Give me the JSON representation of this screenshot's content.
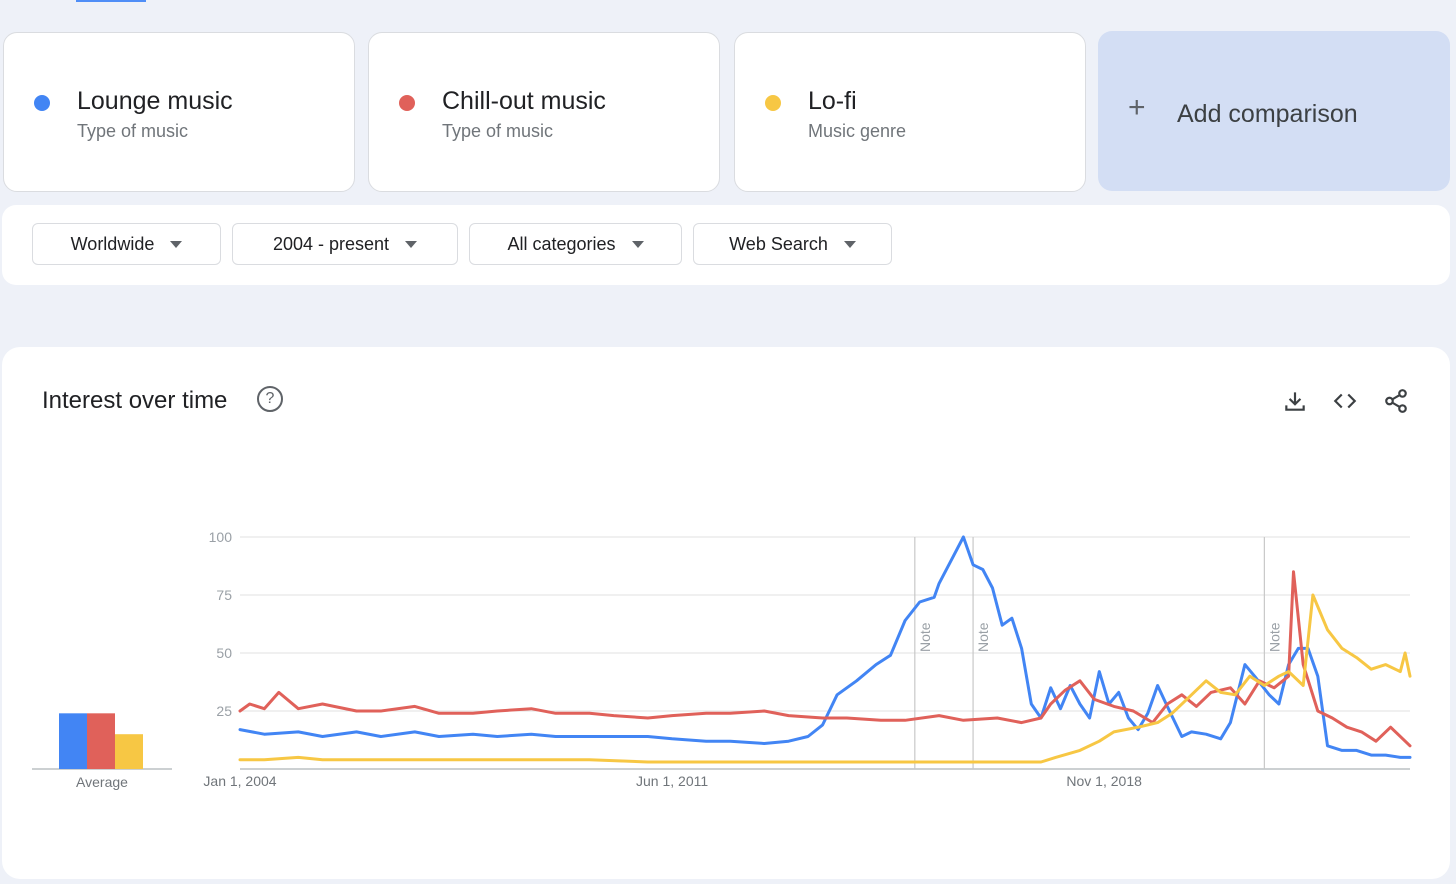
{
  "terms": [
    {
      "name": "Lounge music",
      "type": "Type of music",
      "color": "#4285f4"
    },
    {
      "name": "Chill-out music",
      "type": "Type of music",
      "color": "#e0615a"
    },
    {
      "name": "Lo-fi",
      "type": "Music genre",
      "color": "#f7c744"
    }
  ],
  "add_comparison": {
    "label": "Add comparison",
    "icon": "plus-icon"
  },
  "filters": {
    "region": "Worldwide",
    "time_range": "2004 - present",
    "category": "All categories",
    "search_type": "Web Search"
  },
  "panel": {
    "title": "Interest over time",
    "icons": [
      "help-icon",
      "download-icon",
      "embed-icon",
      "share-icon"
    ]
  },
  "chart_data": [
    {
      "type": "bar",
      "categories": [
        "Lounge music",
        "Chill-out music",
        "Lo-fi"
      ],
      "values": [
        24,
        24,
        15
      ],
      "xlabel": "Average",
      "ylim": [
        0,
        100
      ]
    },
    {
      "type": "line",
      "ylim": [
        0,
        100
      ],
      "yticks": [
        25,
        50,
        75,
        100
      ],
      "xlim": [
        "2004-01",
        "2024-02"
      ],
      "xticks": [
        {
          "date": "2004-01",
          "label": "Jan 1, 2004"
        },
        {
          "date": "2011-06",
          "label": "Jun 1, 2011"
        },
        {
          "date": "2018-11",
          "label": "Nov 1, 2018"
        }
      ],
      "notes": [
        {
          "date": "2015-08",
          "label": "Note"
        },
        {
          "date": "2016-08",
          "label": "Note"
        },
        {
          "date": "2021-08",
          "label": "Note"
        }
      ],
      "grid": true,
      "series": [
        {
          "name": "Lounge music",
          "points": [
            [
              "2004-01",
              17
            ],
            [
              "2004-06",
              15
            ],
            [
              "2005-01",
              16
            ],
            [
              "2005-06",
              14
            ],
            [
              "2006-01",
              16
            ],
            [
              "2006-06",
              14
            ],
            [
              "2007-01",
              16
            ],
            [
              "2007-06",
              14
            ],
            [
              "2008-01",
              15
            ],
            [
              "2008-06",
              14
            ],
            [
              "2009-01",
              15
            ],
            [
              "2009-06",
              14
            ],
            [
              "2010-01",
              14
            ],
            [
              "2010-06",
              14
            ],
            [
              "2011-01",
              14
            ],
            [
              "2011-06",
              13
            ],
            [
              "2012-01",
              12
            ],
            [
              "2012-06",
              12
            ],
            [
              "2013-01",
              11
            ],
            [
              "2013-06",
              12
            ],
            [
              "2013-10",
              14
            ],
            [
              "2014-01",
              19
            ],
            [
              "2014-04",
              32
            ],
            [
              "2014-08",
              38
            ],
            [
              "2014-12",
              45
            ],
            [
              "2015-03",
              49
            ],
            [
              "2015-06",
              64
            ],
            [
              "2015-09",
              72
            ],
            [
              "2015-12",
              74
            ],
            [
              "2016-01",
              80
            ],
            [
              "2016-04",
              92
            ],
            [
              "2016-06",
              100
            ],
            [
              "2016-08",
              88
            ],
            [
              "2016-10",
              86
            ],
            [
              "2016-12",
              78
            ],
            [
              "2017-02",
              62
            ],
            [
              "2017-04",
              65
            ],
            [
              "2017-06",
              52
            ],
            [
              "2017-08",
              28
            ],
            [
              "2017-10",
              22
            ],
            [
              "2017-12",
              35
            ],
            [
              "2018-02",
              26
            ],
            [
              "2018-04",
              36
            ],
            [
              "2018-06",
              28
            ],
            [
              "2018-08",
              22
            ],
            [
              "2018-10",
              42
            ],
            [
              "2018-12",
              28
            ],
            [
              "2019-02",
              33
            ],
            [
              "2019-04",
              22
            ],
            [
              "2019-06",
              17
            ],
            [
              "2019-08",
              24
            ],
            [
              "2019-10",
              36
            ],
            [
              "2019-12",
              27
            ],
            [
              "2020-03",
              14
            ],
            [
              "2020-05",
              16
            ],
            [
              "2020-08",
              15
            ],
            [
              "2020-11",
              13
            ],
            [
              "2021-01",
              20
            ],
            [
              "2021-04",
              45
            ],
            [
              "2021-06",
              40
            ],
            [
              "2021-09",
              32
            ],
            [
              "2021-11",
              28
            ],
            [
              "2022-01",
              45
            ],
            [
              "2022-03",
              52
            ],
            [
              "2022-05",
              52
            ],
            [
              "2022-07",
              40
            ],
            [
              "2022-09",
              10
            ],
            [
              "2022-12",
              8
            ],
            [
              "2023-03",
              8
            ],
            [
              "2023-06",
              6
            ],
            [
              "2023-09",
              6
            ],
            [
              "2023-12",
              5
            ],
            [
              "2024-02",
              5
            ]
          ]
        },
        {
          "name": "Chill-out music",
          "points": [
            [
              "2004-01",
              25
            ],
            [
              "2004-03",
              28
            ],
            [
              "2004-06",
              26
            ],
            [
              "2004-09",
              33
            ],
            [
              "2005-01",
              26
            ],
            [
              "2005-06",
              28
            ],
            [
              "2006-01",
              25
            ],
            [
              "2006-06",
              25
            ],
            [
              "2007-01",
              27
            ],
            [
              "2007-06",
              24
            ],
            [
              "2008-01",
              24
            ],
            [
              "2008-06",
              25
            ],
            [
              "2009-01",
              26
            ],
            [
              "2009-06",
              24
            ],
            [
              "2010-01",
              24
            ],
            [
              "2010-06",
              23
            ],
            [
              "2011-01",
              22
            ],
            [
              "2011-06",
              23
            ],
            [
              "2012-01",
              24
            ],
            [
              "2012-06",
              24
            ],
            [
              "2013-01",
              25
            ],
            [
              "2013-06",
              23
            ],
            [
              "2014-01",
              22
            ],
            [
              "2014-06",
              22
            ],
            [
              "2015-01",
              21
            ],
            [
              "2015-06",
              21
            ],
            [
              "2016-01",
              23
            ],
            [
              "2016-06",
              21
            ],
            [
              "2017-01",
              22
            ],
            [
              "2017-06",
              20
            ],
            [
              "2017-10",
              22
            ],
            [
              "2017-12",
              28
            ],
            [
              "2018-03",
              34
            ],
            [
              "2018-06",
              38
            ],
            [
              "2018-09",
              30
            ],
            [
              "2019-01",
              27
            ],
            [
              "2019-05",
              25
            ],
            [
              "2019-09",
              20
            ],
            [
              "2019-12",
              28
            ],
            [
              "2020-03",
              32
            ],
            [
              "2020-06",
              27
            ],
            [
              "2020-09",
              33
            ],
            [
              "2021-01",
              35
            ],
            [
              "2021-04",
              28
            ],
            [
              "2021-07",
              38
            ],
            [
              "2021-10",
              35
            ],
            [
              "2022-01",
              40
            ],
            [
              "2022-02",
              85
            ],
            [
              "2022-04",
              45
            ],
            [
              "2022-07",
              25
            ],
            [
              "2022-10",
              22
            ],
            [
              "2023-01",
              18
            ],
            [
              "2023-04",
              16
            ],
            [
              "2023-07",
              12
            ],
            [
              "2023-10",
              18
            ],
            [
              "2024-02",
              10
            ]
          ]
        },
        {
          "name": "Lo-fi",
          "points": [
            [
              "2004-01",
              4
            ],
            [
              "2004-06",
              4
            ],
            [
              "2005-01",
              5
            ],
            [
              "2005-06",
              4
            ],
            [
              "2006-01",
              4
            ],
            [
              "2007-01",
              4
            ],
            [
              "2008-01",
              4
            ],
            [
              "2009-01",
              4
            ],
            [
              "2010-01",
              4
            ],
            [
              "2011-01",
              3
            ],
            [
              "2012-01",
              3
            ],
            [
              "2013-01",
              3
            ],
            [
              "2014-01",
              3
            ],
            [
              "2015-01",
              3
            ],
            [
              "2016-01",
              3
            ],
            [
              "2017-01",
              3
            ],
            [
              "2017-06",
              3
            ],
            [
              "2017-10",
              3
            ],
            [
              "2018-01",
              5
            ],
            [
              "2018-06",
              8
            ],
            [
              "2018-10",
              12
            ],
            [
              "2019-01",
              16
            ],
            [
              "2019-06",
              18
            ],
            [
              "2019-10",
              20
            ],
            [
              "2020-01",
              24
            ],
            [
              "2020-04",
              30
            ],
            [
              "2020-08",
              38
            ],
            [
              "2020-11",
              33
            ],
            [
              "2021-02",
              32
            ],
            [
              "2021-05",
              40
            ],
            [
              "2021-08",
              36
            ],
            [
              "2021-11",
              40
            ],
            [
              "2022-01",
              42
            ],
            [
              "2022-04",
              36
            ],
            [
              "2022-06",
              75
            ],
            [
              "2022-09",
              60
            ],
            [
              "2022-12",
              52
            ],
            [
              "2023-03",
              48
            ],
            [
              "2023-06",
              43
            ],
            [
              "2023-09",
              45
            ],
            [
              "2023-12",
              42
            ],
            [
              "2024-01",
              50
            ],
            [
              "2024-02",
              40
            ]
          ]
        }
      ]
    }
  ]
}
